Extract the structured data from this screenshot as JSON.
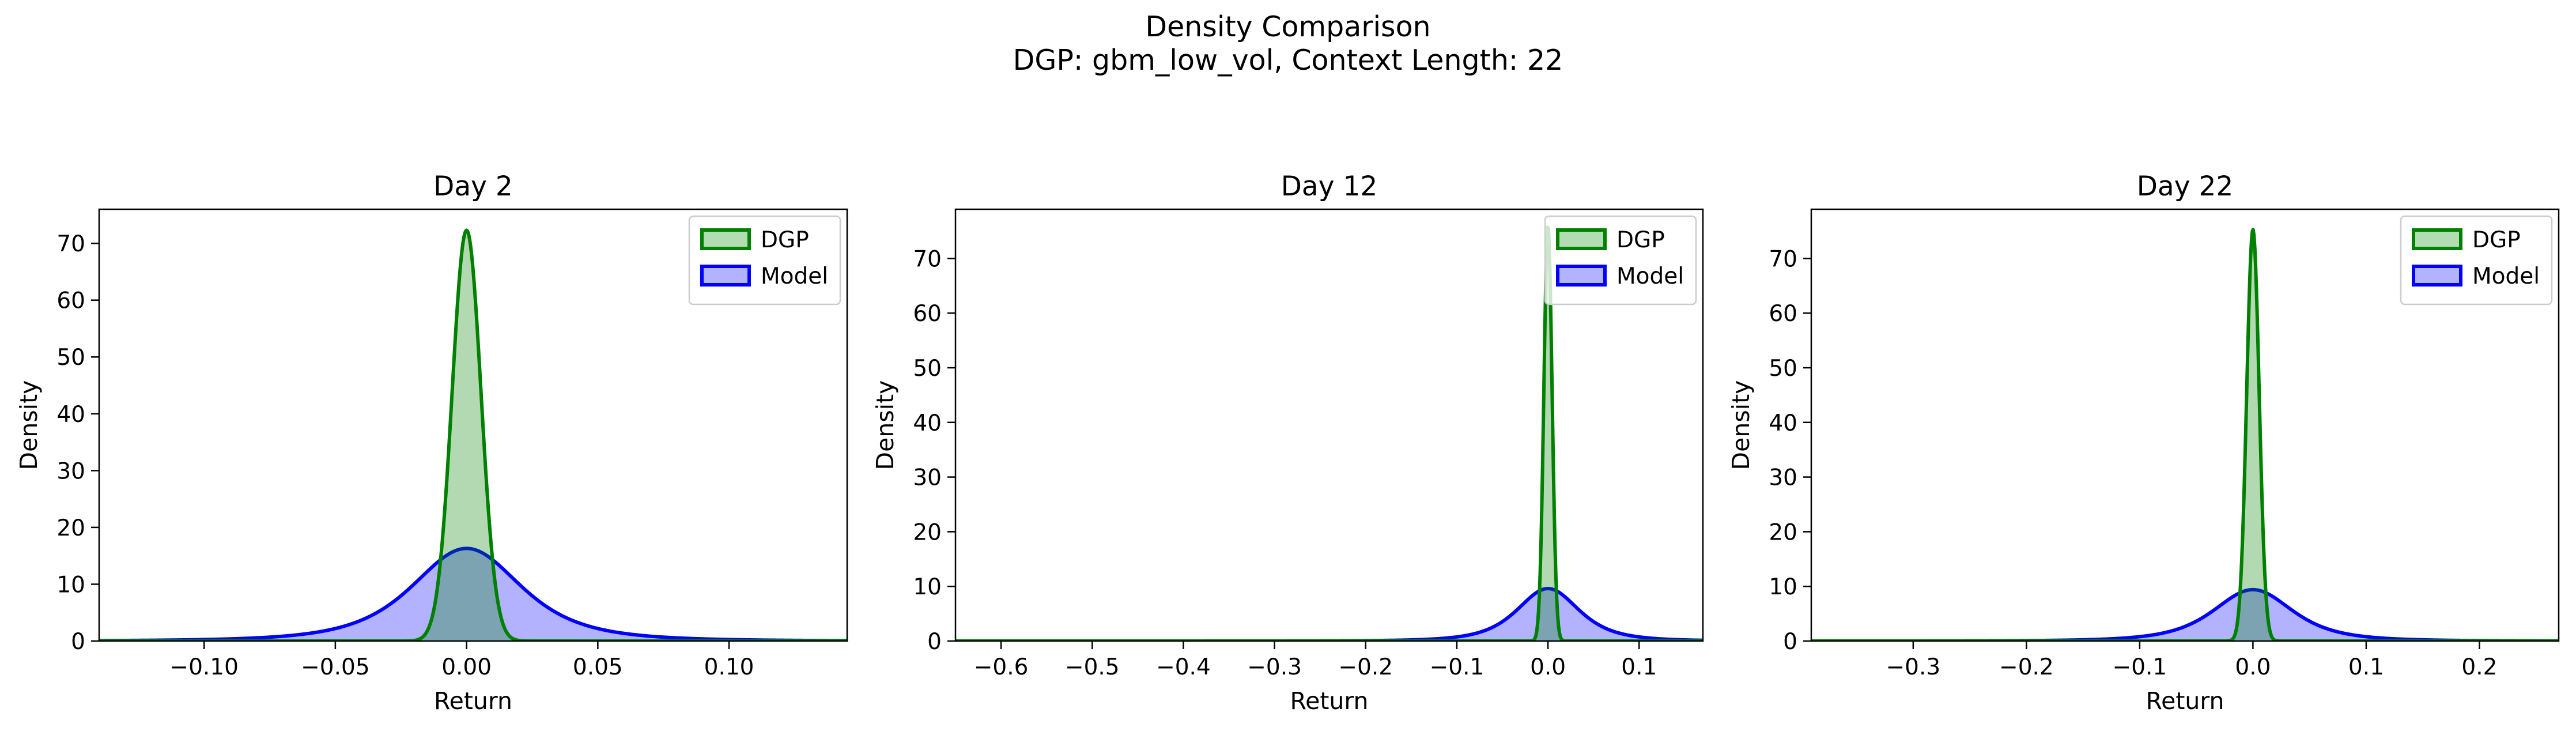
{
  "figure": {
    "title": "Density Comparison",
    "subtitle": "DGP: gbm_low_vol, Context Length: 22"
  },
  "colors": {
    "dgp_line": "#008000",
    "dgp_fill": "#b2dcb2",
    "model_line": "#0000ff",
    "model_fill": "#b2b2ff",
    "overlap_fill": "#7f97c8"
  },
  "legend_placement": "upper right",
  "chart_data": [
    {
      "type": "area",
      "title": "Day 2",
      "xlabel": "Return",
      "ylabel": "Density",
      "xlim": [
        -0.14,
        0.145
      ],
      "ylim": [
        0,
        76
      ],
      "xticks": [
        -0.1,
        -0.05,
        0.0,
        0.05,
        0.1
      ],
      "xtick_labels": [
        "−0.10",
        "−0.05",
        "0.00",
        "0.05",
        "0.10"
      ],
      "yticks": [
        0,
        10,
        20,
        30,
        40,
        50,
        60,
        70
      ],
      "ytick_labels": [
        "0",
        "10",
        "20",
        "30",
        "40",
        "50",
        "60",
        "70"
      ],
      "legend": [
        "DGP",
        "Model"
      ],
      "series": [
        {
          "name": "DGP",
          "kind": "normal",
          "mean": 0.0,
          "peak": 72.3
        },
        {
          "name": "Model",
          "kind": "student_t",
          "mean": 0.0,
          "peak": 16.3,
          "df": 3,
          "spread": 0.022
        }
      ]
    },
    {
      "type": "area",
      "title": "Day 12",
      "xlabel": "Return",
      "ylabel": "Density",
      "xlim": [
        -0.65,
        0.17
      ],
      "ylim": [
        0,
        79
      ],
      "xticks": [
        -0.6,
        -0.5,
        -0.4,
        -0.3,
        -0.2,
        -0.1,
        0.0,
        0.1
      ],
      "xtick_labels": [
        "−0.6",
        "−0.5",
        "−0.4",
        "−0.3",
        "−0.2",
        "−0.1",
        "0.0",
        "0.1"
      ],
      "yticks": [
        0,
        10,
        20,
        30,
        40,
        50,
        60,
        70
      ],
      "ytick_labels": [
        "0",
        "10",
        "20",
        "30",
        "40",
        "50",
        "60",
        "70"
      ],
      "legend": [
        "DGP",
        "Model"
      ],
      "series": [
        {
          "name": "DGP",
          "kind": "normal",
          "mean": 0.0,
          "peak": 76
        },
        {
          "name": "Model",
          "kind": "student_t",
          "mean": 0.0,
          "peak": 9.6,
          "df": 3,
          "spread": 0.036
        }
      ]
    },
    {
      "type": "area",
      "title": "Day 22",
      "xlabel": "Return",
      "ylabel": "Density",
      "xlim": [
        -0.39,
        0.27
      ],
      "ylim": [
        0,
        79
      ],
      "xticks": [
        -0.3,
        -0.2,
        -0.1,
        0.0,
        0.1,
        0.2
      ],
      "xtick_labels": [
        "−0.3",
        "−0.2",
        "−0.1",
        "0.0",
        "0.1",
        "0.2"
      ],
      "yticks": [
        0,
        10,
        20,
        30,
        40,
        50,
        60,
        70
      ],
      "ytick_labels": [
        "0",
        "10",
        "20",
        "30",
        "40",
        "50",
        "60",
        "70"
      ],
      "legend": [
        "DGP",
        "Model"
      ],
      "series": [
        {
          "name": "DGP",
          "kind": "normal",
          "mean": 0.0,
          "peak": 75.3
        },
        {
          "name": "Model",
          "kind": "student_t",
          "mean": 0.0,
          "peak": 9.4,
          "df": 3,
          "spread": 0.037
        }
      ]
    }
  ]
}
